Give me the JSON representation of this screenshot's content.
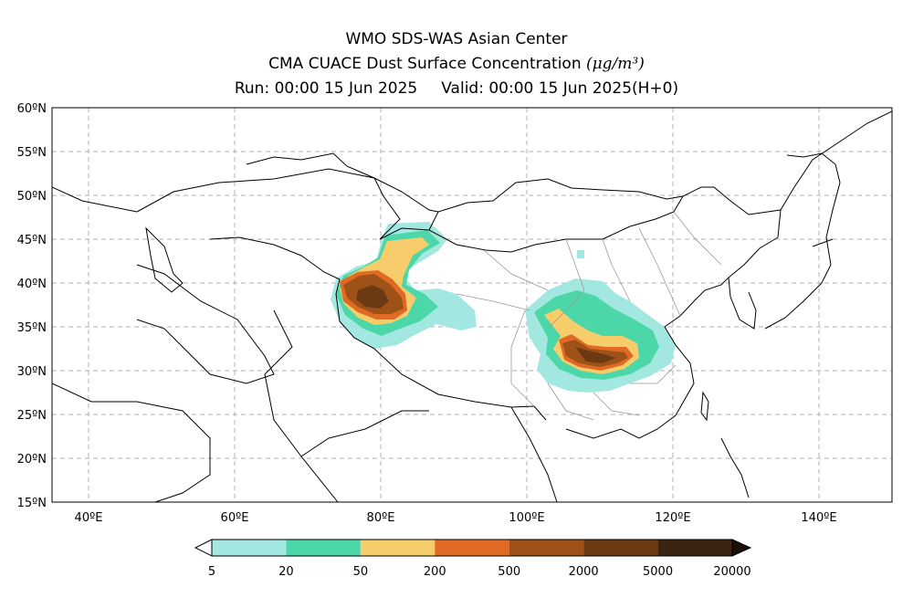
{
  "title": {
    "line1": "WMO SDS-WAS Asian Center",
    "line2_text": "CMA CUACE Dust Surface Concentration",
    "line2_unit": "(μg/m³)",
    "run": "Run: 00:00 15 Jun 2025",
    "valid": "Valid: 00:00 15 Jun 2025(H+0)"
  },
  "map": {
    "lon_range": [
      35,
      150
    ],
    "lat_range": [
      15,
      60
    ],
    "lat_ticks": [
      "60ºN",
      "55ºN",
      "50ºN",
      "45ºN",
      "40ºN",
      "35ºN",
      "30ºN",
      "25ºN",
      "20ºN",
      "15ºN"
    ],
    "lon_ticks": [
      "40ºE",
      "60ºE",
      "80ºE",
      "100ºE",
      "120ºE",
      "140ºE"
    ],
    "grid": true,
    "border_color": "#000000",
    "province_color": "#999999"
  },
  "colorbar": {
    "labels": [
      "5",
      "20",
      "50",
      "200",
      "500",
      "2000",
      "5000",
      "20000"
    ],
    "colors": [
      "#a3e8e0",
      "#4cd7a8",
      "#f7cd6c",
      "#e06a24",
      "#9e5218",
      "#6b3a13",
      "#3b2410"
    ]
  }
}
